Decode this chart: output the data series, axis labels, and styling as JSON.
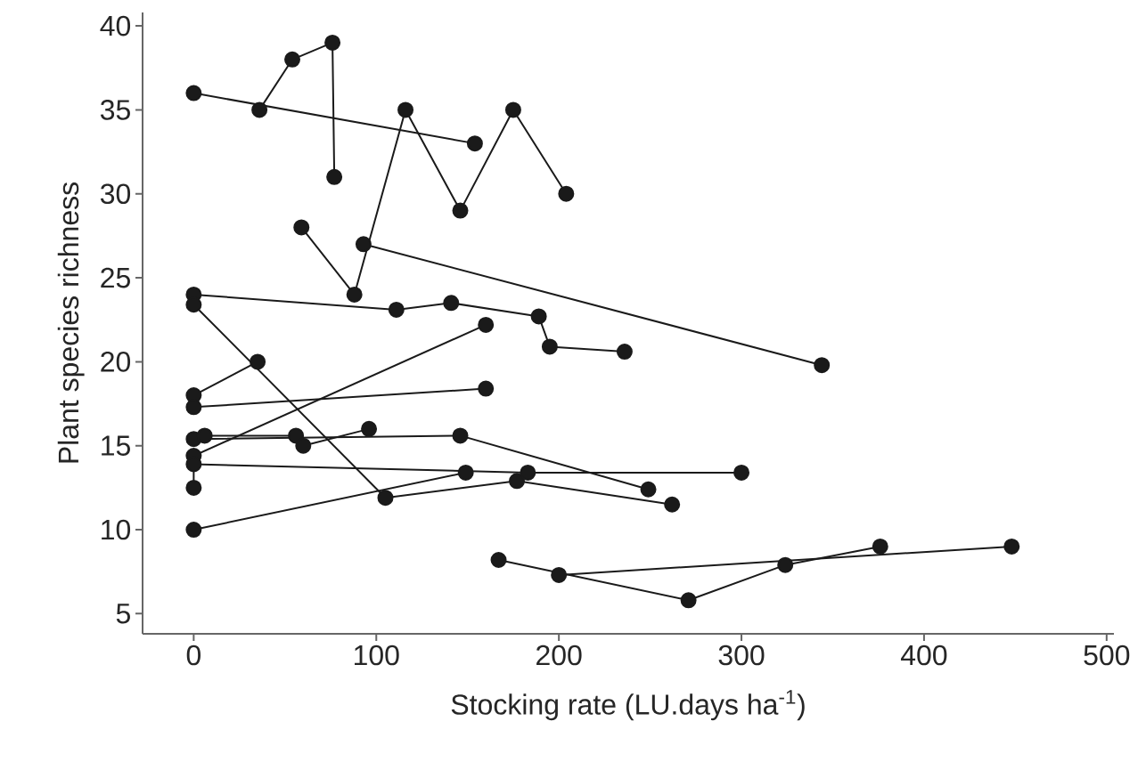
{
  "chart_data": {
    "type": "line",
    "xlabel": "Stocking rate (LU.days ha$^{-1}$)",
    "ylabel": "Plant species richness",
    "xlim": [
      -28,
      504
    ],
    "ylim": [
      3.8,
      40.8
    ],
    "xticks": [
      0,
      100,
      200,
      300,
      400,
      500
    ],
    "yticks": [
      5,
      10,
      15,
      20,
      25,
      30,
      35,
      40
    ],
    "marker": "circle",
    "line_style": "solid",
    "grid": false,
    "legend": false,
    "series": [
      {
        "color": "#1a1a1a",
        "x": [
          0,
          154
        ],
        "values": [
          36,
          33
        ]
      },
      {
        "color": "#1a1a1a",
        "x": [
          36,
          54,
          76,
          77
        ],
        "values": [
          35,
          38,
          39,
          31
        ]
      },
      {
        "color": "#1a1a1a",
        "x": [
          59,
          88,
          116,
          146,
          175,
          204
        ],
        "values": [
          28,
          24,
          35,
          29,
          35,
          30
        ]
      },
      {
        "color": "#1a1a1a",
        "x": [
          93,
          344
        ],
        "values": [
          27,
          19.8
        ]
      },
      {
        "color": "#1a1a1a",
        "x": [
          0,
          111,
          141,
          189,
          195,
          236
        ],
        "values": [
          24,
          23.1,
          23.5,
          22.7,
          20.9,
          20.6
        ]
      },
      {
        "color": "#1a1a1a",
        "x": [
          0,
          105,
          177,
          262
        ],
        "values": [
          23.4,
          11.9,
          12.9,
          11.5
        ]
      },
      {
        "color": "#1a1a1a",
        "x": [
          0,
          35
        ],
        "values": [
          18,
          20
        ]
      },
      {
        "color": "#1a1a1a",
        "x": [
          0,
          160
        ],
        "values": [
          17.3,
          18.4
        ]
      },
      {
        "color": "#1a1a1a",
        "x": [
          0,
          160
        ],
        "values": [
          14.4,
          22.2
        ]
      },
      {
        "color": "#1a1a1a",
        "x": [
          0,
          146,
          249
        ],
        "values": [
          15.4,
          15.6,
          12.4
        ]
      },
      {
        "color": "#1a1a1a",
        "x": [
          6,
          56,
          60,
          96
        ],
        "values": [
          15.6,
          15.6,
          15,
          16
        ]
      },
      {
        "color": "#1a1a1a",
        "x": [
          0,
          0,
          183,
          300
        ],
        "values": [
          12.5,
          13.9,
          13.4,
          13.4
        ]
      },
      {
        "color": "#1a1a1a",
        "x": [
          0,
          149
        ],
        "values": [
          10,
          13.4
        ]
      },
      {
        "color": "#1a1a1a",
        "x": [
          167,
          271,
          324,
          376
        ],
        "values": [
          8.2,
          5.8,
          7.9,
          9
        ]
      },
      {
        "color": "#1a1a1a",
        "x": [
          200,
          448
        ],
        "values": [
          7.3,
          9
        ]
      }
    ]
  }
}
